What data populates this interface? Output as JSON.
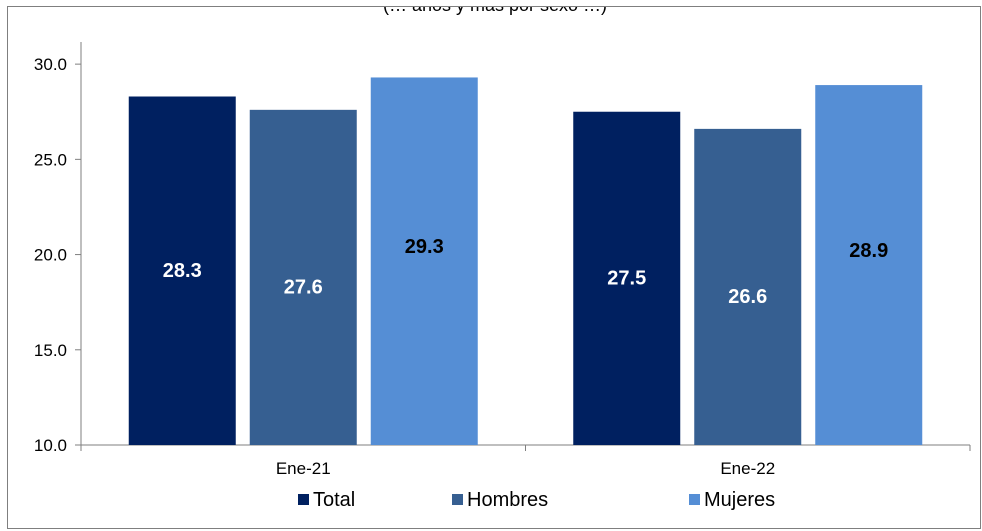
{
  "chart_data": {
    "type": "bar",
    "title_fragment": "(… años y más por sexo …)",
    "categories": [
      "Ene-21",
      "Ene-22"
    ],
    "series": [
      {
        "name": "Total",
        "values": [
          28.3,
          27.5
        ],
        "color": "#002060",
        "label_color": "#ffffff"
      },
      {
        "name": "Hombres",
        "values": [
          27.6,
          26.6
        ],
        "color": "#365f91",
        "label_color": "#ffffff"
      },
      {
        "name": "Mujeres",
        "values": [
          29.3,
          28.9
        ],
        "color": "#558ed5",
        "label_color": "#000000"
      }
    ],
    "ylim": [
      10,
      33
    ],
    "yticks": [
      "10.0",
      "15.0",
      "20.0",
      "25.0",
      "30.0"
    ],
    "ytick_values": [
      10,
      15,
      20,
      25,
      30
    ],
    "grid": false,
    "legend_position": "bottom",
    "xlabel": "",
    "ylabel": ""
  }
}
